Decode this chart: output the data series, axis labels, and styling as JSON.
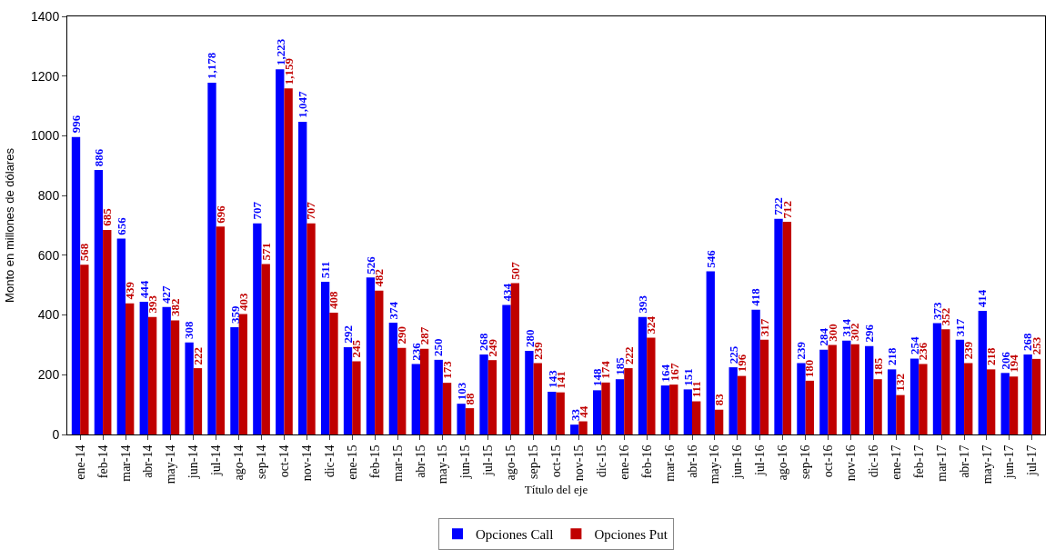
{
  "chart_data": {
    "type": "bar",
    "ylabel": "Monto en millones de dólares",
    "xlabel": "Título del eje",
    "categories": [
      "ene-14",
      "feb-14",
      "mar-14",
      "abr-14",
      "may-14",
      "jun-14",
      "jul-14",
      "ago-14",
      "sep-14",
      "oct-14",
      "nov-14",
      "dic-14",
      "ene-15",
      "feb-15",
      "mar-15",
      "abr-15",
      "may-15",
      "jun-15",
      "jul-15",
      "ago-15",
      "sep-15",
      "oct-15",
      "nov-15",
      "dic-15",
      "ene-16",
      "feb-16",
      "mar-16",
      "abr-16",
      "may-16",
      "jun-16",
      "jul-16",
      "ago-16",
      "sep-16",
      "oct-16",
      "nov-16",
      "dic-16",
      "ene-17",
      "feb-17",
      "mar-17",
      "abr-17",
      "may-17",
      "jun-17",
      "jul-17"
    ],
    "series": [
      {
        "name": "Opciones Call",
        "color": "#0000ff",
        "values": [
          996,
          886,
          656,
          444,
          427,
          308,
          1178,
          359,
          707,
          1223,
          1047,
          511,
          292,
          526,
          374,
          236,
          250,
          103,
          268,
          434,
          280,
          143,
          33,
          148,
          185,
          393,
          164,
          151,
          546,
          225,
          418,
          722,
          239,
          284,
          314,
          296,
          218,
          254,
          373,
          317,
          414,
          206,
          268
        ],
        "value_labels": [
          "996",
          "886",
          "656",
          "444",
          "427",
          "308",
          "1,178",
          "359",
          "707",
          "1,223",
          "1,047",
          "511",
          "292",
          "526",
          "374",
          "236",
          "250",
          "103",
          "268",
          "434",
          "280",
          "143",
          "33",
          "148",
          "185",
          "393",
          "164",
          "151",
          "546",
          "225",
          "418",
          "722",
          "239",
          "284",
          "314",
          "296",
          "218",
          "254",
          "373",
          "317",
          "414",
          "206",
          "268"
        ]
      },
      {
        "name": "Opciones Put",
        "color": "#c00000",
        "values": [
          568,
          685,
          439,
          393,
          382,
          222,
          696,
          403,
          571,
          1159,
          707,
          408,
          245,
          482,
          290,
          287,
          173,
          88,
          249,
          507,
          239,
          141,
          44,
          174,
          222,
          324,
          167,
          111,
          83,
          196,
          317,
          712,
          180,
          300,
          302,
          185,
          132,
          236,
          352,
          239,
          218,
          194,
          253
        ],
        "value_labels": [
          "568",
          "685",
          "439",
          "393",
          "382",
          "222",
          "696",
          "403",
          "571",
          "1,159",
          "707",
          "408",
          "245",
          "482",
          "290",
          "287",
          "173",
          "88",
          "249",
          "507",
          "239",
          "141",
          "44",
          "174",
          "222",
          "324",
          "167",
          "111",
          "83",
          "196",
          "317",
          "712",
          "180",
          "300",
          "302",
          "185",
          "132",
          "236",
          "352",
          "239",
          "218",
          "194",
          "253"
        ]
      }
    ],
    "ylim": [
      0,
      1400
    ],
    "yticks": [
      0,
      200,
      400,
      600,
      800,
      1000,
      1200,
      1400
    ],
    "legend": "bottom"
  }
}
